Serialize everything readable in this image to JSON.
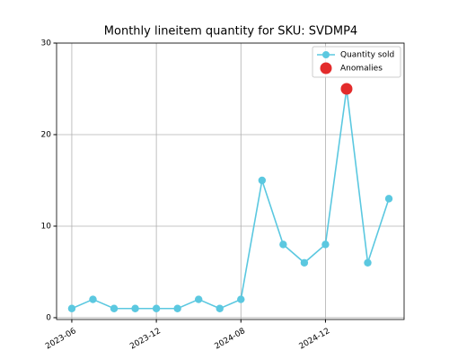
{
  "chart_data": {
    "type": "line",
    "title": "Monthly lineitem quantity for SKU: SVDMP4",
    "categories": [
      "2023-06",
      null,
      null,
      null,
      "2023-12",
      null,
      null,
      null,
      "2024-08",
      null,
      null,
      null,
      "2024-12",
      null,
      null,
      null
    ],
    "series": [
      {
        "name": "Quantity sold",
        "color": "#5bc8e0",
        "marker": "line",
        "values": [
          1,
          2,
          1,
          1,
          1,
          1,
          2,
          1,
          2,
          15,
          8,
          6,
          8,
          25,
          6,
          13
        ]
      },
      {
        "name": "Anomalies",
        "color": "#e32b2b",
        "marker": "point",
        "values": [
          null,
          null,
          null,
          null,
          null,
          null,
          null,
          null,
          null,
          null,
          null,
          null,
          null,
          25,
          null,
          null
        ]
      }
    ],
    "ylim": [
      -0.2,
      30
    ],
    "yticks": [
      0,
      10,
      20,
      30
    ],
    "grid": true,
    "legend": "upper right"
  }
}
